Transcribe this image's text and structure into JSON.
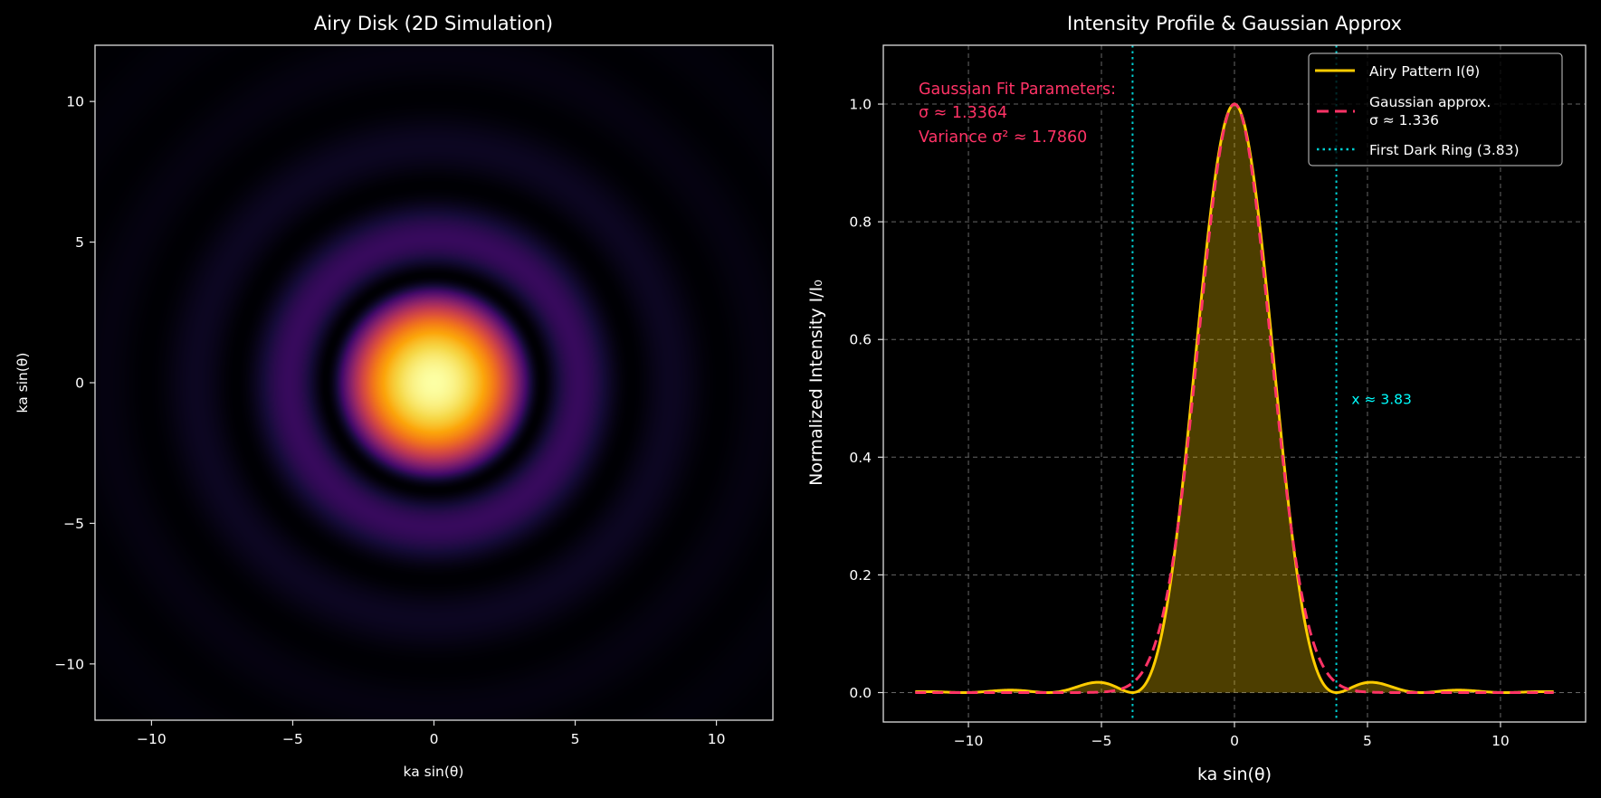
{
  "chart_data": [
    {
      "type": "heatmap",
      "title": "Airy Disk (2D Simulation)",
      "xlabel": "ka sin(θ)",
      "ylabel": "ka sin(θ)",
      "xlim": [
        -12,
        12
      ],
      "ylim": [
        -12,
        12
      ],
      "xticks": [
        -10,
        -5,
        0,
        5,
        10
      ],
      "yticks": [
        -10,
        -5,
        0,
        5,
        10
      ],
      "colormap": "inferno",
      "grid": false
    },
    {
      "type": "line",
      "title": "Intensity Profile & Gaussian Approx",
      "xlabel": "ka sin(θ)",
      "ylabel": "Normalized Intensity I/I₀",
      "xlim": [
        -13.2,
        13.2
      ],
      "ylim": [
        -0.05,
        1.1
      ],
      "xticks": [
        -10,
        -5,
        0,
        5,
        10
      ],
      "yticks": [
        0.0,
        0.2,
        0.4,
        0.6,
        0.8,
        1.0
      ],
      "grid": true,
      "x_range": [
        -12,
        12
      ],
      "series": [
        {
          "name": "Airy Pattern I(θ)",
          "color": "#FFCC00",
          "style": "solid",
          "fill_alpha": 0.3,
          "peak": 1.0,
          "secondary_max": {
            "x": 5.14,
            "y": 0.0175
          }
        },
        {
          "name_line1": "Gaussian approx.",
          "name_line2": "σ ≈ 1.336",
          "color": "#FF3366",
          "style": "dashed",
          "sigma": 1.3364
        },
        {
          "name": "First Dark Ring (3.83)",
          "color": "#00CED1",
          "style": "dotted",
          "x": [
            -3.83,
            3.83
          ]
        }
      ],
      "legend": "top-right",
      "annotations": {
        "fit_box": [
          "Gaussian Fit Parameters:",
          "σ ≈ 1.3364",
          "Variance σ² ≈ 1.7860"
        ],
        "fit_color": "#FF3366",
        "ring_label": "x ≈ 3.83",
        "ring_label_color": "#00FFFF",
        "ring_label_pos": {
          "x": 4.4,
          "y": 0.5
        }
      }
    }
  ]
}
